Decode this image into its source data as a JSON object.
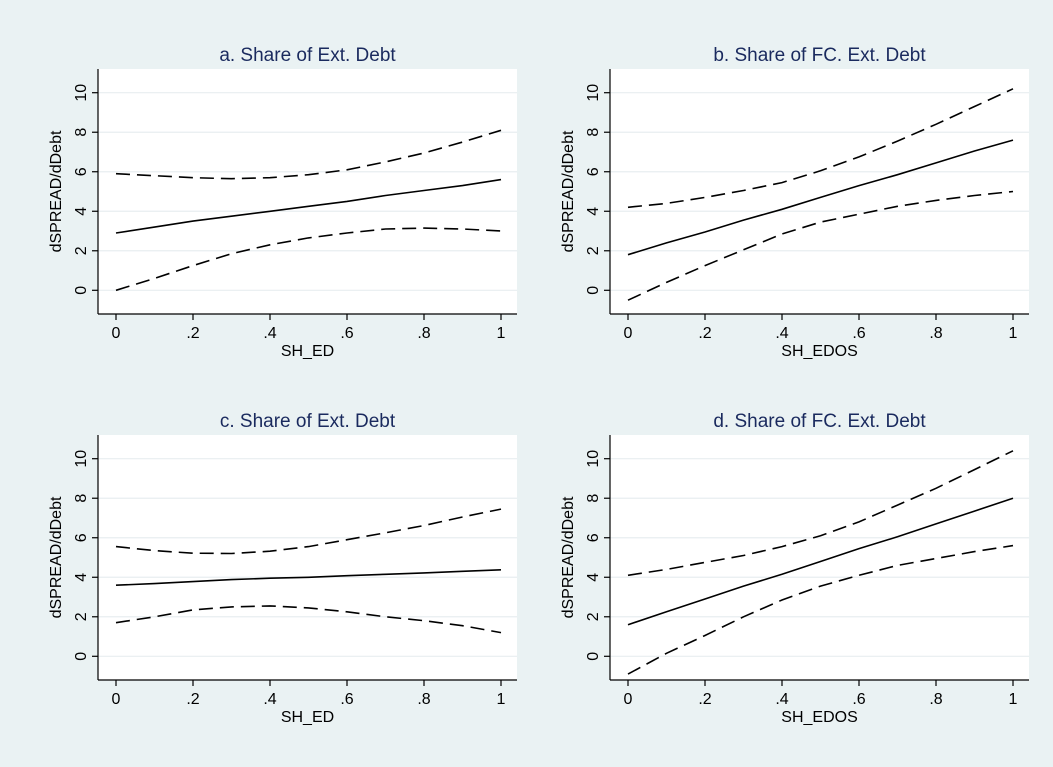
{
  "chart_data": [
    {
      "type": "line",
      "title": "a. Share of Ext. Debt",
      "xlabel": "SH_ED",
      "ylabel": "dSPREAD/dDebt",
      "xlim": [
        0,
        1
      ],
      "ylim": [
        -1.2,
        11.2
      ],
      "x_ticks": [
        0,
        0.2,
        0.4,
        0.6,
        0.8,
        1
      ],
      "x_tick_labels": [
        "0",
        ".2",
        ".4",
        ".6",
        ".8",
        "1"
      ],
      "y_ticks": [
        0,
        2,
        4,
        6,
        8,
        10
      ],
      "y_tick_labels": [
        "0",
        "2",
        "4",
        "6",
        "8",
        "10"
      ],
      "grid": "horizontal",
      "x": [
        0,
        0.1,
        0.2,
        0.3,
        0.4,
        0.5,
        0.6,
        0.7,
        0.8,
        0.9,
        1
      ],
      "series": [
        {
          "style": "solid",
          "values": [
            2.9,
            3.2,
            3.5,
            3.75,
            4.0,
            4.25,
            4.5,
            4.8,
            5.05,
            5.3,
            5.6
          ]
        },
        {
          "style": "dashed",
          "values": [
            5.9,
            5.8,
            5.7,
            5.65,
            5.7,
            5.85,
            6.1,
            6.5,
            6.95,
            7.5,
            8.1
          ]
        },
        {
          "style": "dashed",
          "values": [
            0.0,
            0.6,
            1.25,
            1.85,
            2.3,
            2.65,
            2.9,
            3.1,
            3.15,
            3.1,
            3.0
          ]
        }
      ]
    },
    {
      "type": "line",
      "title": "b. Share of FC. Ext. Debt",
      "xlabel": "SH_EDOS",
      "ylabel": "dSPREAD/dDebt",
      "xlim": [
        0,
        1
      ],
      "ylim": [
        -1.2,
        11.2
      ],
      "x_ticks": [
        0,
        0.2,
        0.4,
        0.6,
        0.8,
        1
      ],
      "x_tick_labels": [
        "0",
        ".2",
        ".4",
        ".6",
        ".8",
        "1"
      ],
      "y_ticks": [
        0,
        2,
        4,
        6,
        8,
        10
      ],
      "y_tick_labels": [
        "0",
        "2",
        "4",
        "6",
        "8",
        "10"
      ],
      "grid": "horizontal",
      "x": [
        0,
        0.1,
        0.2,
        0.3,
        0.4,
        0.5,
        0.6,
        0.7,
        0.8,
        0.9,
        1
      ],
      "series": [
        {
          "style": "solid",
          "values": [
            1.8,
            2.4,
            2.95,
            3.55,
            4.1,
            4.7,
            5.3,
            5.85,
            6.45,
            7.05,
            7.6
          ]
        },
        {
          "style": "dashed",
          "values": [
            4.2,
            4.4,
            4.7,
            5.05,
            5.45,
            6.05,
            6.75,
            7.55,
            8.4,
            9.3,
            10.2
          ]
        },
        {
          "style": "dashed",
          "values": [
            -0.5,
            0.4,
            1.25,
            2.05,
            2.85,
            3.45,
            3.85,
            4.25,
            4.55,
            4.8,
            5.0
          ]
        }
      ]
    },
    {
      "type": "line",
      "title": "c. Share of Ext. Debt",
      "xlabel": "SH_ED",
      "ylabel": "dSPREAD/dDebt",
      "xlim": [
        0,
        1
      ],
      "ylim": [
        -1.2,
        11.2
      ],
      "x_ticks": [
        0,
        0.2,
        0.4,
        0.6,
        0.8,
        1
      ],
      "x_tick_labels": [
        "0",
        ".2",
        ".4",
        ".6",
        ".8",
        "1"
      ],
      "y_ticks": [
        0,
        2,
        4,
        6,
        8,
        10
      ],
      "y_tick_labels": [
        "0",
        "2",
        "4",
        "6",
        "8",
        "10"
      ],
      "grid": "horizontal",
      "x": [
        0,
        0.1,
        0.2,
        0.3,
        0.4,
        0.5,
        0.6,
        0.7,
        0.8,
        0.9,
        1
      ],
      "series": [
        {
          "style": "solid",
          "values": [
            3.6,
            3.68,
            3.78,
            3.88,
            3.95,
            4.0,
            4.08,
            4.15,
            4.22,
            4.3,
            4.38
          ]
        },
        {
          "style": "dashed",
          "values": [
            5.55,
            5.35,
            5.22,
            5.2,
            5.32,
            5.55,
            5.9,
            6.25,
            6.62,
            7.05,
            7.45
          ]
        },
        {
          "style": "dashed",
          "values": [
            1.7,
            2.0,
            2.35,
            2.5,
            2.55,
            2.45,
            2.25,
            2.0,
            1.8,
            1.55,
            1.2
          ]
        }
      ]
    },
    {
      "type": "line",
      "title": "d. Share of FC. Ext. Debt",
      "xlabel": "SH_EDOS",
      "ylabel": "dSPREAD/dDebt",
      "xlim": [
        0,
        1
      ],
      "ylim": [
        -1.2,
        11.2
      ],
      "x_ticks": [
        0,
        0.2,
        0.4,
        0.6,
        0.8,
        1
      ],
      "x_tick_labels": [
        "0",
        ".2",
        ".4",
        ".6",
        ".8",
        "1"
      ],
      "y_ticks": [
        0,
        2,
        4,
        6,
        8,
        10
      ],
      "y_tick_labels": [
        "0",
        "2",
        "4",
        "6",
        "8",
        "10"
      ],
      "grid": "horizontal",
      "x": [
        0,
        0.1,
        0.2,
        0.3,
        0.4,
        0.5,
        0.6,
        0.7,
        0.8,
        0.9,
        1
      ],
      "series": [
        {
          "style": "solid",
          "values": [
            1.6,
            2.25,
            2.9,
            3.55,
            4.15,
            4.8,
            5.45,
            6.05,
            6.7,
            7.35,
            8.0
          ]
        },
        {
          "style": "dashed",
          "values": [
            4.1,
            4.4,
            4.75,
            5.1,
            5.55,
            6.1,
            6.8,
            7.65,
            8.5,
            9.45,
            10.4
          ]
        },
        {
          "style": "dashed",
          "values": [
            -0.9,
            0.15,
            1.05,
            2.0,
            2.85,
            3.55,
            4.1,
            4.6,
            4.95,
            5.3,
            5.6
          ]
        }
      ]
    }
  ]
}
